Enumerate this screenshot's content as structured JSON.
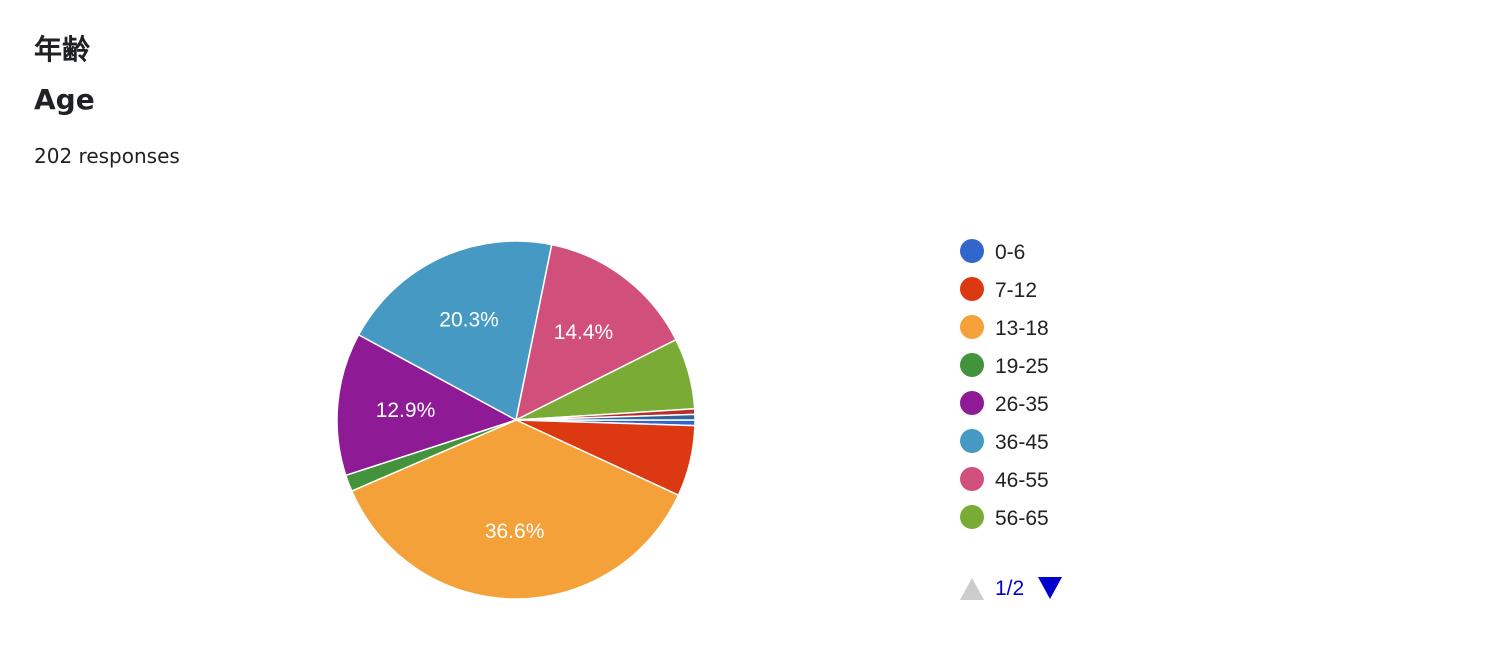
{
  "question": {
    "title": "年齢",
    "subtitle": "Age",
    "responses": "202 responses"
  },
  "chart_data": {
    "type": "pie",
    "slices": [
      {
        "label": "0-6",
        "value": 0.5,
        "color": "#3366cc",
        "display": ""
      },
      {
        "label": "7-12",
        "value": 6.4,
        "color": "#dc3912",
        "display": ""
      },
      {
        "label": "13-18",
        "value": 36.6,
        "color": "#f4a13a",
        "display": "36.6%"
      },
      {
        "label": "19-25",
        "value": 1.5,
        "color": "#43933c",
        "display": ""
      },
      {
        "label": "26-35",
        "value": 12.9,
        "color": "#8e1a96",
        "display": "12.9%"
      },
      {
        "label": "36-45",
        "value": 20.3,
        "color": "#4599c3",
        "display": "20.3%"
      },
      {
        "label": "46-55",
        "value": 14.4,
        "color": "#d1507b",
        "display": "14.4%"
      },
      {
        "label": "56-65",
        "value": 6.4,
        "color": "#7aab34",
        "display": ""
      },
      {
        "label": "",
        "value": 0.5,
        "color": "#b82e2e",
        "display": ""
      },
      {
        "label": "",
        "value": 0.5,
        "color": "#316395",
        "display": ""
      }
    ],
    "legend": {
      "placement": "right",
      "page": "1/2"
    }
  }
}
